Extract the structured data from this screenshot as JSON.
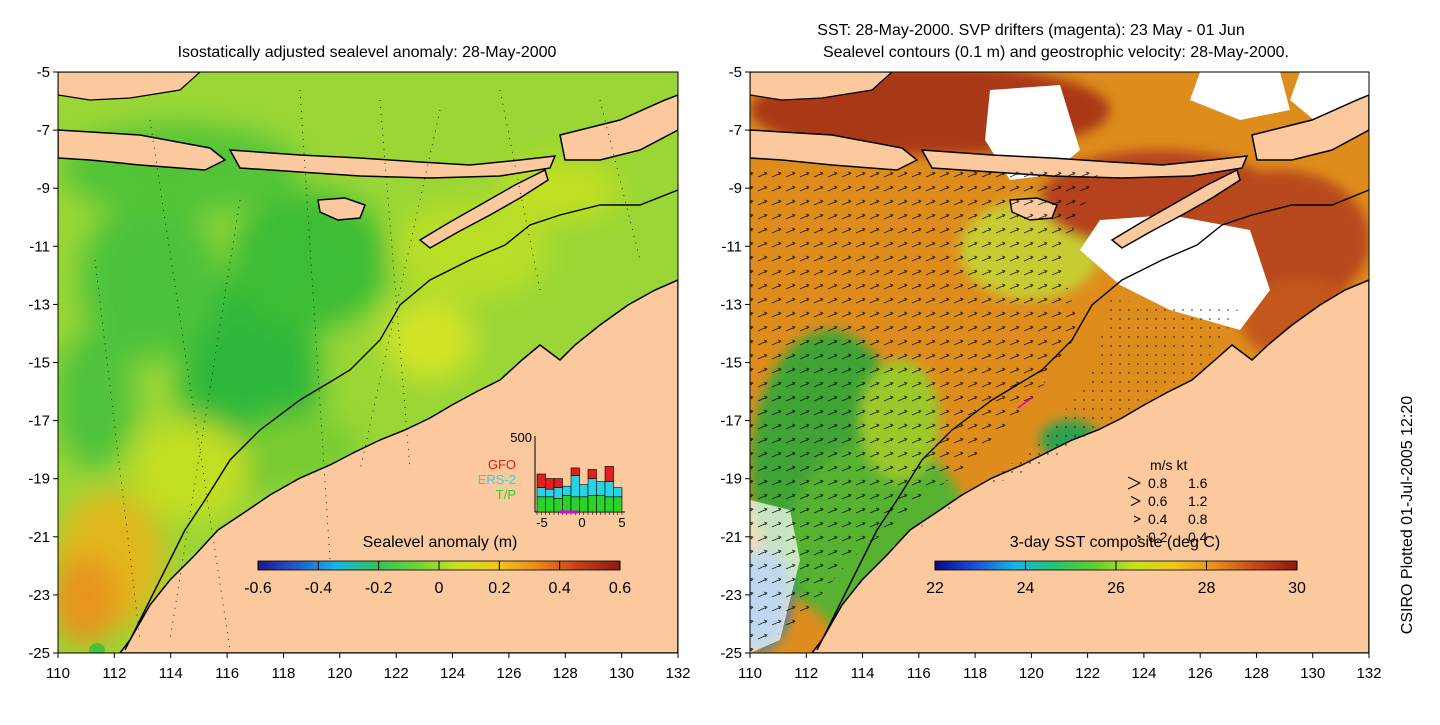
{
  "colors": {
    "land": "#fbc99d",
    "coast": "#000000",
    "ocean_green": "#47c238",
    "ocean_yellowgreen": "#9ad636",
    "ocean_yellow": "#d8e61f",
    "ocean_orange": "#e89a1d",
    "sst_red": "#b5431a",
    "sst_orange": "#de8d1d",
    "sst_green": "#3fa434",
    "sst_blue": "#1530b0",
    "drifter": "#e000e0",
    "histogram_gfo": "#e02020",
    "histogram_ers2": "#26d4e6",
    "histogram_tp": "#28d428"
  },
  "left_panel": {
    "title": "Isostatically adjusted sealevel anomaly: 28-May-2000",
    "y_ticks": [
      "-5",
      "-7",
      "-9",
      "-11",
      "-13",
      "-15",
      "-17",
      "-19",
      "-21",
      "-23",
      "-25"
    ],
    "x_ticks": [
      "110",
      "112",
      "114",
      "116",
      "118",
      "120",
      "122",
      "124",
      "126",
      "128",
      "130",
      "132"
    ],
    "colorbar": {
      "label": "Sealevel anomaly (m)",
      "ticks": [
        "-0.6",
        "-0.4",
        "-0.2",
        "0",
        "0.2",
        "0.4",
        "0.6"
      ],
      "stops": [
        "#1a1a8c",
        "#1e5fd0",
        "#19b5e6",
        "#2ec45a",
        "#6ed23a",
        "#c8e21e",
        "#f0c81c",
        "#ec8a18",
        "#c8401a",
        "#8a1a10"
      ]
    },
    "histogram": {
      "y_max_label": "500",
      "x_ticks": [
        "-5",
        "0",
        "5"
      ],
      "legend": [
        "GFO",
        "ERS-2",
        "T/P"
      ],
      "bars": [
        {
          "tp": 0.2,
          "ers2": 0.12,
          "gfo": 0.18
        },
        {
          "tp": 0.2,
          "ers2": 0.1,
          "gfo": 0.14
        },
        {
          "tp": 0.18,
          "ers2": 0.14,
          "gfo": 0.12
        },
        {
          "tp": 0.22,
          "ers2": 0.12,
          "gfo": 0.0
        },
        {
          "tp": 0.2,
          "ers2": 0.28,
          "gfo": 0.1
        },
        {
          "tp": 0.2,
          "ers2": 0.16,
          "gfo": 0.0
        },
        {
          "tp": 0.22,
          "ers2": 0.22,
          "gfo": 0.12
        },
        {
          "tp": 0.22,
          "ers2": 0.18,
          "gfo": 0.0
        },
        {
          "tp": 0.2,
          "ers2": 0.2,
          "gfo": 0.2
        },
        {
          "tp": 0.2,
          "ers2": 0.12,
          "gfo": 0.0
        }
      ]
    }
  },
  "right_panel": {
    "title_line1": "SST: 28-May-2000. SVP drifters (magenta): 23 May - 01 Jun",
    "title_line2": "Sealevel contours (0.1 m) and geostrophic velocity: 28-May-2000.",
    "y_ticks": [
      "-5",
      "-7",
      "-9",
      "-11",
      "-13",
      "-15",
      "-17",
      "-19",
      "-21",
      "-23",
      "-25"
    ],
    "x_ticks": [
      "110",
      "112",
      "114",
      "116",
      "118",
      "120",
      "122",
      "124",
      "126",
      "128",
      "130",
      "132"
    ],
    "colorbar": {
      "label": "3-day SST composite (deg C)",
      "ticks": [
        "22",
        "24",
        "26",
        "28",
        "30"
      ],
      "stops": [
        "#0a0a8c",
        "#1850d8",
        "#18b4e8",
        "#20c470",
        "#5cd030",
        "#c8e020",
        "#f0c818",
        "#e8901c",
        "#c84a1a",
        "#901810"
      ]
    },
    "velocity_legend": {
      "header": "m/s  kt",
      "rows": [
        {
          "ms": "0.8",
          "kt": "1.6"
        },
        {
          "ms": "0.6",
          "kt": "1.2"
        },
        {
          "ms": "0.4",
          "kt": "0.8"
        },
        {
          "ms": "0.2",
          "kt": "0.4"
        }
      ]
    }
  },
  "footer": {
    "credit": "CSIRO Plotted 01-Jul-2005 12:20"
  }
}
